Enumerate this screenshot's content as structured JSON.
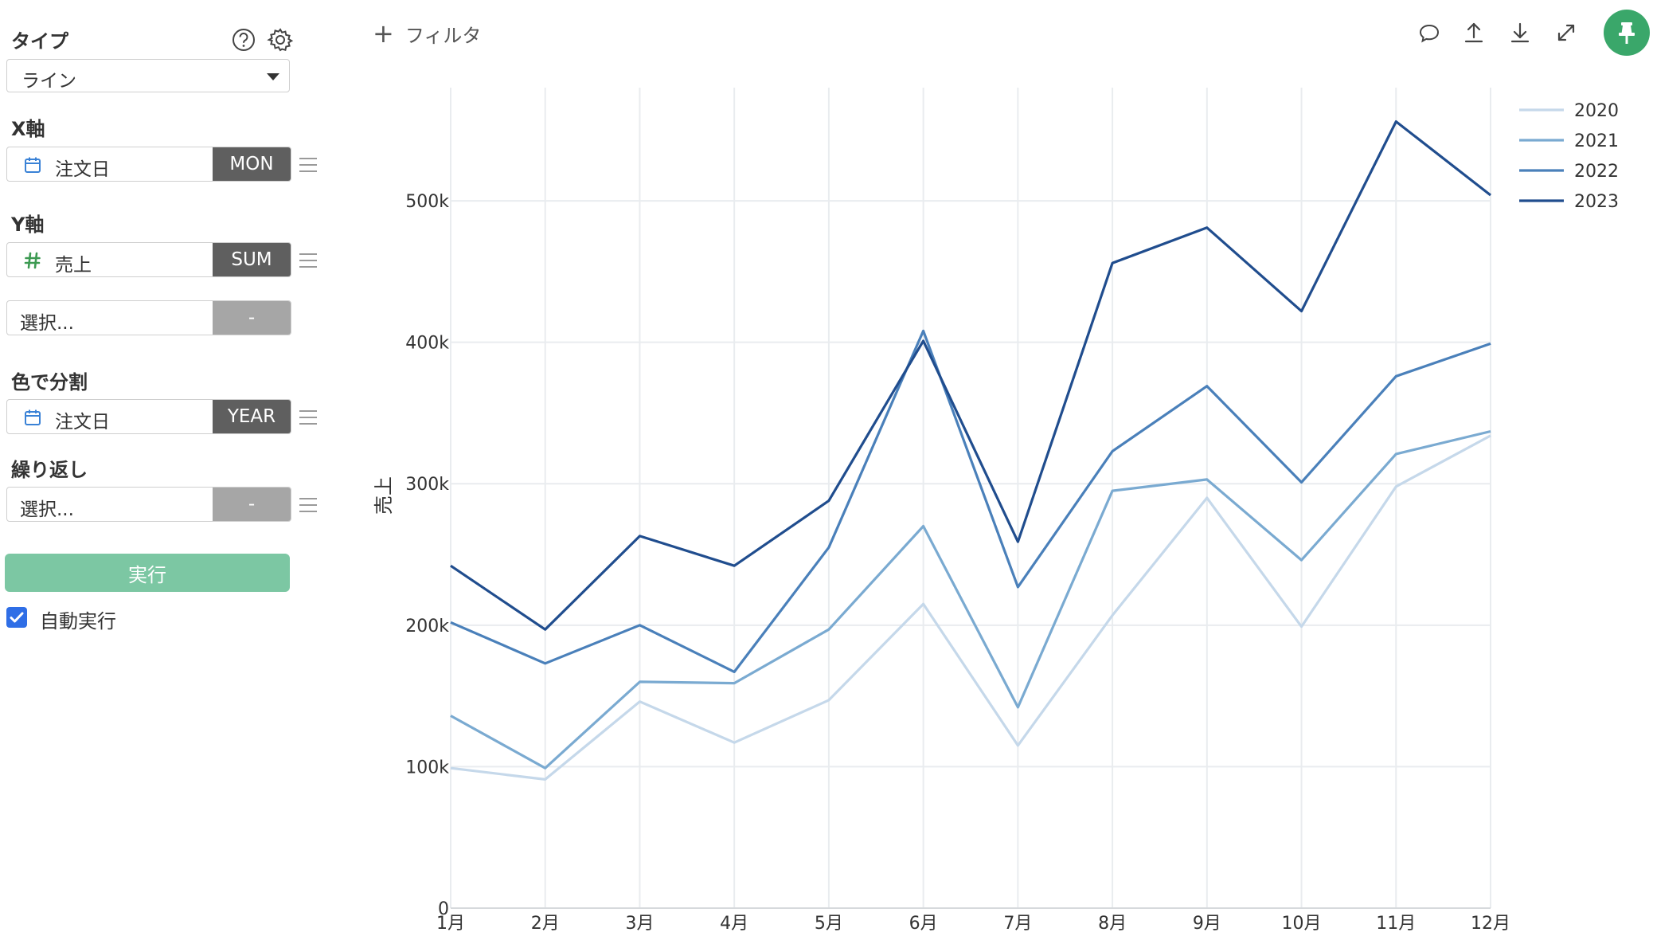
{
  "sidebar": {
    "type_label": "タイプ",
    "type_value": "ライン",
    "x_axis_label": "X軸",
    "x_field": {
      "name": "注文日",
      "agg": "MON",
      "icon": "calendar-icon"
    },
    "y_axis_label": "Y軸",
    "y_field": {
      "name": "売上",
      "agg": "SUM",
      "icon": "hash-icon"
    },
    "y_extra": {
      "placeholder": "選択...",
      "agg": "-"
    },
    "color_label": "色で分割",
    "color_field": {
      "name": "注文日",
      "agg": "YEAR",
      "icon": "calendar-icon"
    },
    "repeat_label": "繰り返し",
    "repeat_field": {
      "placeholder": "選択...",
      "agg": "-"
    },
    "run_label": "実行",
    "auto_run_label": "自動実行",
    "auto_run_checked": true
  },
  "toolbar": {
    "add_filter": "フィルタ",
    "icons": [
      "comment-icon",
      "upload-icon",
      "download-icon",
      "expand-icon",
      "pin-icon"
    ]
  },
  "colors": {
    "accent_green": "#7cc7a3",
    "pin_green": "#3aa76a",
    "checkbox_blue": "#2f6ee6",
    "series": [
      "#c5d8ea",
      "#7aaad1",
      "#4a80ba",
      "#204d8e"
    ]
  },
  "chart_data": {
    "type": "line",
    "ylabel": "売上",
    "xlabel": "",
    "categories": [
      "1月",
      "2月",
      "3月",
      "4月",
      "5月",
      "6月",
      "7月",
      "8月",
      "9月",
      "10月",
      "11月",
      "12月"
    ],
    "ylim": [
      0,
      580000
    ],
    "yticks": [
      0,
      100000,
      200000,
      300000,
      400000,
      500000
    ],
    "ytick_labels": [
      "0",
      "100k",
      "200k",
      "300k",
      "400k",
      "500k"
    ],
    "grid": true,
    "legend_position": "top-right",
    "series": [
      {
        "name": "2020",
        "values": [
          99000,
          91000,
          146000,
          117000,
          147000,
          215000,
          115000,
          207000,
          290000,
          199000,
          298000,
          334000
        ]
      },
      {
        "name": "2021",
        "values": [
          136000,
          99000,
          160000,
          159000,
          197000,
          270000,
          142000,
          295000,
          303000,
          246000,
          321000,
          337000
        ]
      },
      {
        "name": "2022",
        "values": [
          202000,
          173000,
          200000,
          167000,
          255000,
          408000,
          227000,
          323000,
          369000,
          301000,
          376000,
          399000
        ]
      },
      {
        "name": "2023",
        "values": [
          242000,
          197000,
          263000,
          242000,
          288000,
          401000,
          259000,
          456000,
          481000,
          422000,
          556000,
          504000
        ]
      }
    ]
  }
}
